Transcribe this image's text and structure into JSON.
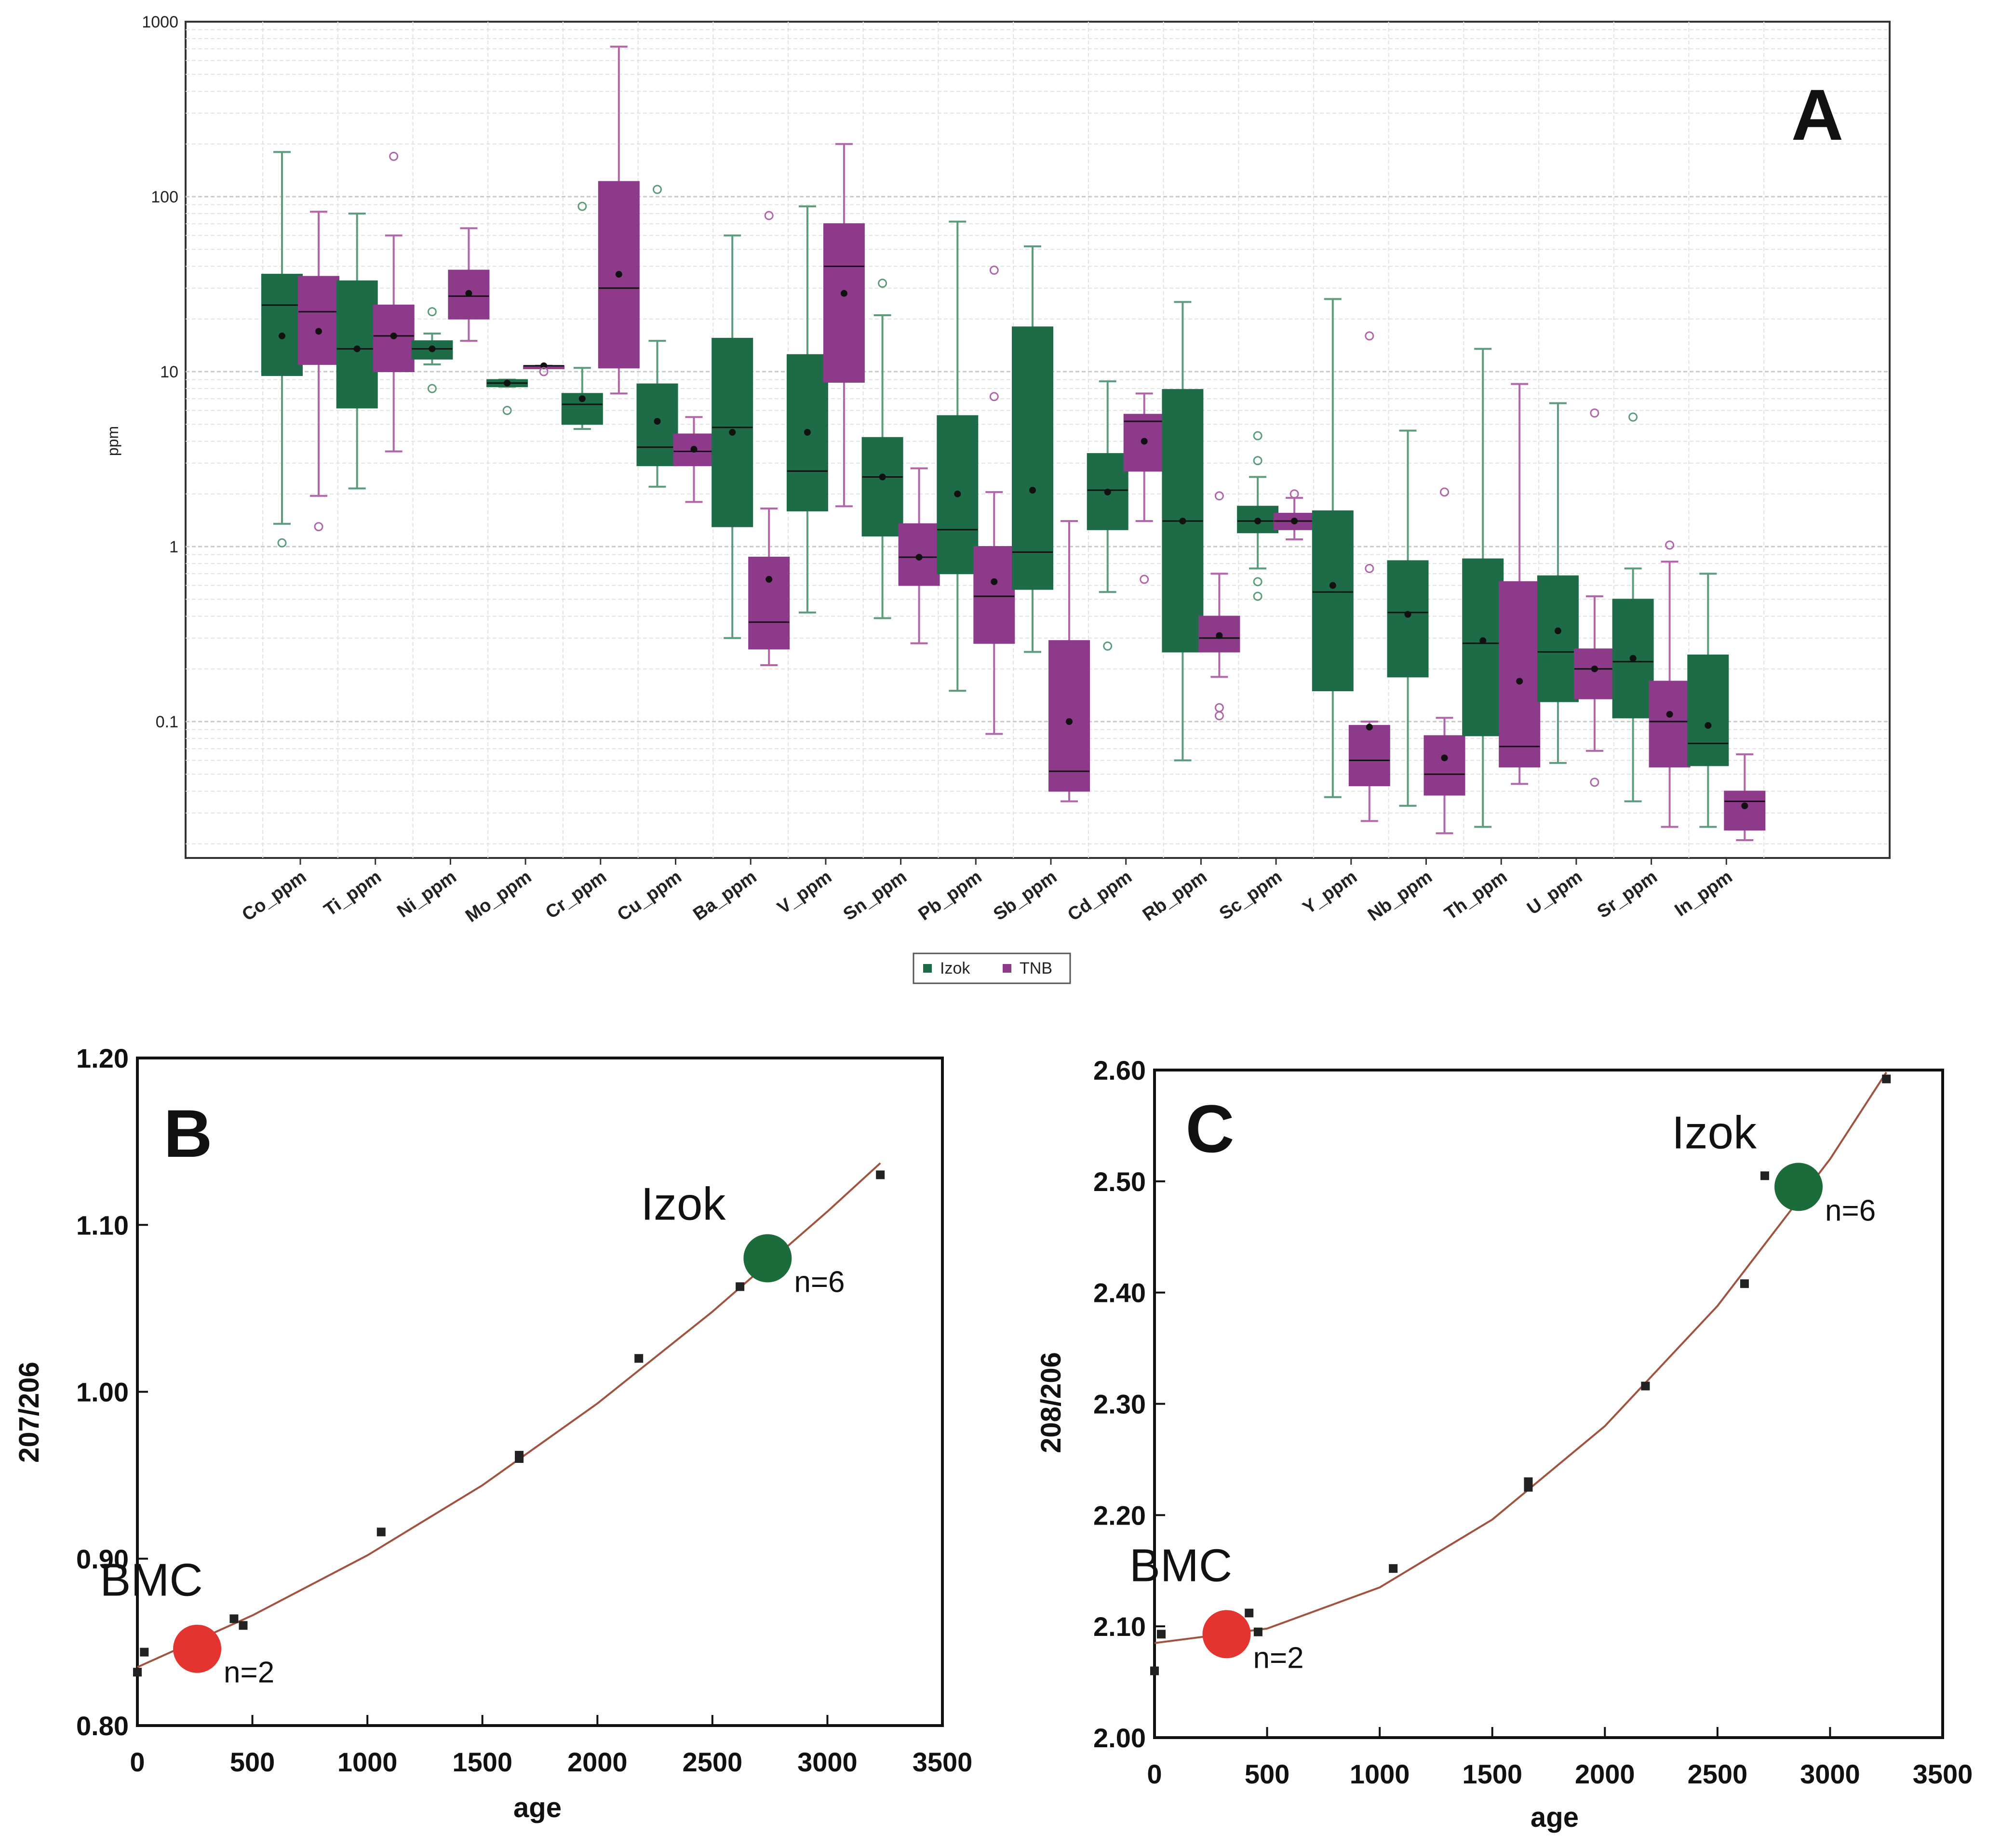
{
  "figure": {
    "panels": [
      {
        "id": "A",
        "label": "A"
      },
      {
        "id": "B",
        "label": "B"
      },
      {
        "id": "C",
        "label": "C"
      }
    ]
  },
  "colors": {
    "izok": "#1e6b47",
    "tnb": "#8e3a8a",
    "izok_whisker": "#5c9b7c",
    "tnb_whisker": "#b066a8",
    "curve": "#a0533f",
    "bmc_marker": "#e3342f",
    "izok_marker": "#1c6b3b",
    "grid": "#d9d9d9"
  },
  "chart_data": [
    {
      "panel": "A",
      "type": "box",
      "ylabel": "ppm",
      "yscale": "log",
      "ylim": [
        0.02,
        1000
      ],
      "yticks": [
        "0.1",
        "1",
        "10",
        "100",
        "1000"
      ],
      "grid": true,
      "legend": {
        "position": "bottom-center",
        "entries": [
          "Izok",
          "TNB"
        ]
      },
      "categories": [
        "Co_ppm",
        "Ti_ppm",
        "Ni_ppm",
        "Mo_ppm",
        "Cr_ppm",
        "Cu_ppm",
        "Ba_ppm",
        "V_ppm",
        "Sn_ppm",
        "Pb_ppm",
        "Sb_ppm",
        "Cd_ppm",
        "Rb_ppm",
        "Sc_ppm",
        "Y_ppm",
        "Nb_ppm",
        "Th_ppm",
        "U_ppm",
        "Sr_ppm",
        "In_ppm"
      ],
      "boxes": [
        {
          "element": "Co_ppm",
          "group": "Izok",
          "whisker_low": 1.35,
          "q1": 9.5,
          "median": 24,
          "q3": 36,
          "whisker_high": 180,
          "mean": 16,
          "outliers": [
            1.05
          ]
        },
        {
          "element": "Co_ppm",
          "group": "TNB",
          "whisker_low": 1.95,
          "q1": 11,
          "median": 22,
          "q3": 35,
          "whisker_high": 82,
          "mean": 17,
          "outliers": [
            1.3
          ]
        },
        {
          "element": "Ti_ppm",
          "group": "Izok",
          "whisker_low": 2.15,
          "q1": 6.2,
          "median": 13.5,
          "q3": 33,
          "whisker_high": 80,
          "mean": 13.5,
          "outliers": []
        },
        {
          "element": "Ti_ppm",
          "group": "TNB",
          "whisker_low": 3.5,
          "q1": 10,
          "median": 16,
          "q3": 24,
          "whisker_high": 60,
          "mean": 16,
          "outliers": [
            170
          ]
        },
        {
          "element": "Ni_ppm",
          "group": "Izok",
          "whisker_low": 11,
          "q1": 11.8,
          "median": 13.5,
          "q3": 15,
          "whisker_high": 16.5,
          "mean": 13.5,
          "outliers": [
            8,
            22
          ]
        },
        {
          "element": "Ni_ppm",
          "group": "TNB",
          "whisker_low": 15,
          "q1": 20,
          "median": 27,
          "q3": 38,
          "whisker_high": 66,
          "mean": 28,
          "outliers": []
        },
        {
          "element": "Mo_ppm",
          "group": "Izok",
          "whisker_low": 8.2,
          "q1": 8.2,
          "median": 8.6,
          "q3": 9,
          "whisker_high": 9,
          "mean": 8.6,
          "outliers": [
            6
          ]
        },
        {
          "element": "Mo_ppm",
          "group": "TNB",
          "whisker_low": 10.8,
          "q1": 10.8,
          "median": 10.8,
          "q3": 10.8,
          "whisker_high": 10.8,
          "mean": 10.8,
          "outliers": [
            10
          ]
        },
        {
          "element": "Cr_ppm",
          "group": "Izok",
          "whisker_low": 4.7,
          "q1": 5,
          "median": 6.5,
          "q3": 7.5,
          "whisker_high": 10.5,
          "mean": 7,
          "outliers": [
            88
          ]
        },
        {
          "element": "Cr_ppm",
          "group": "TNB",
          "whisker_low": 7.5,
          "q1": 10.5,
          "median": 30,
          "q3": 122,
          "whisker_high": 720,
          "mean": 36,
          "outliers": []
        },
        {
          "element": "Cu_ppm",
          "group": "Izok",
          "whisker_low": 2.2,
          "q1": 2.9,
          "median": 3.7,
          "q3": 8.5,
          "whisker_high": 15,
          "mean": 5.2,
          "outliers": [
            110
          ]
        },
        {
          "element": "Cu_ppm",
          "group": "TNB",
          "whisker_low": 1.8,
          "q1": 2.9,
          "median": 3.5,
          "q3": 4.4,
          "whisker_high": 5.5,
          "mean": 3.6,
          "outliers": []
        },
        {
          "element": "Ba_ppm",
          "group": "Izok",
          "whisker_low": 0.3,
          "q1": 1.3,
          "median": 4.8,
          "q3": 15.5,
          "whisker_high": 60,
          "mean": 4.5,
          "outliers": []
        },
        {
          "element": "Ba_ppm",
          "group": "TNB",
          "whisker_low": 0.21,
          "q1": 0.26,
          "median": 0.37,
          "q3": 0.87,
          "whisker_high": 1.65,
          "mean": 0.65,
          "outliers": [
            78
          ]
        },
        {
          "element": "V_ppm",
          "group": "Izok",
          "whisker_low": 0.42,
          "q1": 1.6,
          "median": 2.7,
          "q3": 12.5,
          "whisker_high": 88,
          "mean": 4.5,
          "outliers": []
        },
        {
          "element": "V_ppm",
          "group": "TNB",
          "whisker_low": 1.7,
          "q1": 8.7,
          "median": 40,
          "q3": 70,
          "whisker_high": 200,
          "mean": 28,
          "outliers": []
        },
        {
          "element": "Sn_ppm",
          "group": "Izok",
          "whisker_low": 0.39,
          "q1": 1.15,
          "median": 2.5,
          "q3": 4.2,
          "whisker_high": 21,
          "mean": 2.5,
          "outliers": [
            32
          ]
        },
        {
          "element": "Sn_ppm",
          "group": "TNB",
          "whisker_low": 0.28,
          "q1": 0.6,
          "median": 0.87,
          "q3": 1.35,
          "whisker_high": 2.8,
          "mean": 0.87,
          "outliers": []
        },
        {
          "element": "Pb_ppm",
          "group": "Izok",
          "whisker_low": 0.15,
          "q1": 0.7,
          "median": 1.25,
          "q3": 5.6,
          "whisker_high": 72,
          "mean": 2,
          "outliers": []
        },
        {
          "element": "Pb_ppm",
          "group": "TNB",
          "whisker_low": 0.085,
          "q1": 0.28,
          "median": 0.52,
          "q3": 1,
          "whisker_high": 2.05,
          "mean": 0.63,
          "outliers": [
            7.2,
            38
          ]
        },
        {
          "element": "Sb_ppm",
          "group": "Izok",
          "whisker_low": 0.25,
          "q1": 0.57,
          "median": 0.93,
          "q3": 18,
          "whisker_high": 52,
          "mean": 2.1,
          "outliers": []
        },
        {
          "element": "Sb_ppm",
          "group": "TNB",
          "whisker_low": 0.035,
          "q1": 0.04,
          "median": 0.052,
          "q3": 0.29,
          "whisker_high": 1.4,
          "mean": 0.1,
          "outliers": []
        },
        {
          "element": "Cd_ppm",
          "group": "Izok",
          "whisker_low": 0.55,
          "q1": 1.25,
          "median": 2.1,
          "q3": 3.4,
          "whisker_high": 8.8,
          "mean": 2.05,
          "outliers": [
            0.27
          ]
        },
        {
          "element": "Cd_ppm",
          "group": "TNB",
          "whisker_low": 1.4,
          "q1": 2.7,
          "median": 5.2,
          "q3": 5.7,
          "whisker_high": 7.5,
          "mean": 4,
          "outliers": [
            0.65
          ]
        },
        {
          "element": "Rb_ppm",
          "group": "Izok",
          "whisker_low": 0.06,
          "q1": 0.25,
          "median": 1.4,
          "q3": 7.9,
          "whisker_high": 25,
          "mean": 1.4,
          "outliers": []
        },
        {
          "element": "Rb_ppm",
          "group": "TNB",
          "whisker_low": 0.18,
          "q1": 0.25,
          "median": 0.3,
          "q3": 0.4,
          "whisker_high": 0.7,
          "mean": 0.31,
          "outliers": [
            1.95,
            0.12,
            0.108
          ]
        },
        {
          "element": "Sc_ppm",
          "group": "Izok",
          "whisker_low": 0.75,
          "q1": 1.2,
          "median": 1.4,
          "q3": 1.7,
          "whisker_high": 2.5,
          "mean": 1.4,
          "outliers": [
            0.52,
            0.63,
            3.1,
            4.3
          ]
        },
        {
          "element": "Sc_ppm",
          "group": "TNB",
          "whisker_low": 1.1,
          "q1": 1.25,
          "median": 1.4,
          "q3": 1.55,
          "whisker_high": 1.9,
          "mean": 1.4,
          "outliers": [
            2
          ]
        },
        {
          "element": "Y_ppm",
          "group": "Izok",
          "whisker_low": 0.037,
          "q1": 0.15,
          "median": 0.55,
          "q3": 1.6,
          "whisker_high": 26,
          "mean": 0.6,
          "outliers": []
        },
        {
          "element": "Y_ppm",
          "group": "TNB",
          "whisker_low": 0.027,
          "q1": 0.043,
          "median": 0.06,
          "q3": 0.095,
          "whisker_high": 0.1,
          "mean": 0.093,
          "outliers": [
            0.75,
            16
          ]
        },
        {
          "element": "Nb_ppm",
          "group": "Izok",
          "whisker_low": 0.033,
          "q1": 0.18,
          "median": 0.42,
          "q3": 0.83,
          "whisker_high": 4.6,
          "mean": 0.41,
          "outliers": []
        },
        {
          "element": "Nb_ppm",
          "group": "TNB",
          "whisker_low": 0.023,
          "q1": 0.038,
          "median": 0.05,
          "q3": 0.083,
          "whisker_high": 0.105,
          "mean": 0.062,
          "outliers": [
            2.05
          ]
        },
        {
          "element": "Th_ppm",
          "group": "Izok",
          "whisker_low": 0.025,
          "q1": 0.083,
          "median": 0.28,
          "q3": 0.85,
          "whisker_high": 13.5,
          "mean": 0.29,
          "outliers": []
        },
        {
          "element": "Th_ppm",
          "group": "TNB",
          "whisker_low": 0.044,
          "q1": 0.055,
          "median": 0.072,
          "q3": 0.63,
          "whisker_high": 8.5,
          "mean": 0.17,
          "outliers": []
        },
        {
          "element": "U_ppm",
          "group": "Izok",
          "whisker_low": 0.058,
          "q1": 0.13,
          "median": 0.25,
          "q3": 0.68,
          "whisker_high": 6.6,
          "mean": 0.33,
          "outliers": []
        },
        {
          "element": "U_ppm",
          "group": "TNB",
          "whisker_low": 0.068,
          "q1": 0.135,
          "median": 0.2,
          "q3": 0.26,
          "whisker_high": 0.52,
          "mean": 0.2,
          "outliers": [
            0.045,
            5.8
          ]
        },
        {
          "element": "Sr_ppm",
          "group": "Izok",
          "whisker_low": 0.035,
          "q1": 0.105,
          "median": 0.22,
          "q3": 0.5,
          "whisker_high": 0.75,
          "mean": 0.23,
          "outliers": [
            5.5
          ]
        },
        {
          "element": "Sr_ppm",
          "group": "TNB",
          "whisker_low": 0.025,
          "q1": 0.055,
          "median": 0.1,
          "q3": 0.17,
          "whisker_high": 0.82,
          "mean": 0.11,
          "outliers": [
            1.02
          ]
        },
        {
          "element": "In_ppm",
          "group": "Izok",
          "whisker_low": 0.025,
          "q1": 0.056,
          "median": 0.075,
          "q3": 0.24,
          "whisker_high": 0.7,
          "mean": 0.095,
          "outliers": []
        },
        {
          "element": "In_ppm",
          "group": "TNB",
          "whisker_low": 0.021,
          "q1": 0.024,
          "median": 0.035,
          "q3": 0.04,
          "whisker_high": 0.065,
          "mean": 0.033,
          "outliers": []
        }
      ]
    },
    {
      "panel": "B",
      "type": "scatter",
      "xlabel": "age",
      "ylabel": "207/206",
      "xlim": [
        0,
        3500
      ],
      "ylim": [
        0.8,
        1.2
      ],
      "xticks": [
        "0",
        "500",
        "1000",
        "1500",
        "2000",
        "2500",
        "3000",
        "3500"
      ],
      "yticks": [
        "0.80",
        "0.90",
        "1.00",
        "1.10",
        "1.20"
      ],
      "grid": false,
      "points": [
        {
          "x": 0,
          "y": 0.832
        },
        {
          "x": 30,
          "y": 0.844
        },
        {
          "x": 420,
          "y": 0.864
        },
        {
          "x": 460,
          "y": 0.86
        },
        {
          "x": 1060,
          "y": 0.916
        },
        {
          "x": 1660,
          "y": 0.96
        },
        {
          "x": 1660,
          "y": 0.962
        },
        {
          "x": 2180,
          "y": 1.02
        },
        {
          "x": 2620,
          "y": 1.063
        },
        {
          "x": 3230,
          "y": 1.13
        }
      ],
      "curve": [
        {
          "x": 0,
          "y": 0.835
        },
        {
          "x": 500,
          "y": 0.866
        },
        {
          "x": 1000,
          "y": 0.902
        },
        {
          "x": 1500,
          "y": 0.944
        },
        {
          "x": 2000,
          "y": 0.993
        },
        {
          "x": 2500,
          "y": 1.048
        },
        {
          "x": 3000,
          "y": 1.108
        },
        {
          "x": 3230,
          "y": 1.137
        }
      ],
      "markers": [
        {
          "label": "BMC",
          "n": "n=2",
          "x": 260,
          "y": 0.846,
          "color": "#e3342f"
        },
        {
          "label": "Izok",
          "n": "n=6",
          "x": 2740,
          "y": 1.08,
          "color": "#1c6b3b"
        }
      ]
    },
    {
      "panel": "C",
      "type": "scatter",
      "xlabel": "age",
      "ylabel": "208/206",
      "xlim": [
        0,
        3500
      ],
      "ylim": [
        2.0,
        2.6
      ],
      "xticks": [
        "0",
        "500",
        "1000",
        "1500",
        "2000",
        "2500",
        "3000",
        "3500"
      ],
      "yticks": [
        "2.00",
        "2.10",
        "2.20",
        "2.30",
        "2.40",
        "2.50",
        "2.60"
      ],
      "grid": false,
      "points": [
        {
          "x": 0,
          "y": 2.06
        },
        {
          "x": 30,
          "y": 2.093
        },
        {
          "x": 420,
          "y": 2.112
        },
        {
          "x": 460,
          "y": 2.095
        },
        {
          "x": 1060,
          "y": 2.152
        },
        {
          "x": 1660,
          "y": 2.225
        },
        {
          "x": 1660,
          "y": 2.23
        },
        {
          "x": 2180,
          "y": 2.316
        },
        {
          "x": 2620,
          "y": 2.408
        },
        {
          "x": 2710,
          "y": 2.505
        },
        {
          "x": 3250,
          "y": 2.592
        }
      ],
      "curve": [
        {
          "x": 0,
          "y": 2.085
        },
        {
          "x": 500,
          "y": 2.098
        },
        {
          "x": 1000,
          "y": 2.135
        },
        {
          "x": 1500,
          "y": 2.196
        },
        {
          "x": 2000,
          "y": 2.28
        },
        {
          "x": 2500,
          "y": 2.388
        },
        {
          "x": 3000,
          "y": 2.52
        },
        {
          "x": 3250,
          "y": 2.598
        }
      ],
      "markers": [
        {
          "label": "BMC",
          "n": "n=2",
          "x": 320,
          "y": 2.093,
          "color": "#e3342f"
        },
        {
          "label": "Izok",
          "n": "n=6",
          "x": 2860,
          "y": 2.495,
          "color": "#1c6b3b"
        }
      ]
    }
  ]
}
